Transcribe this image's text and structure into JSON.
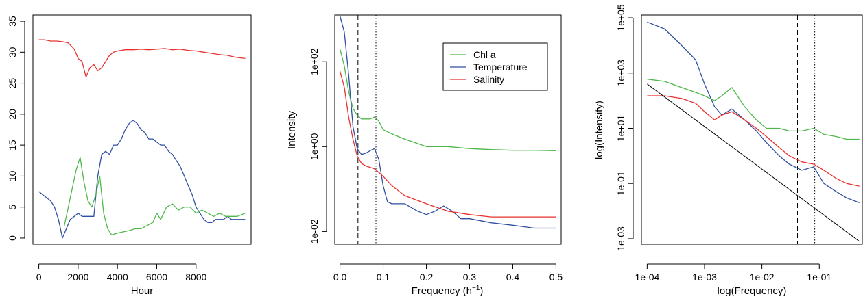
{
  "chart_data": [
    {
      "type": "line",
      "xlabel": "Hour",
      "ylabel": "",
      "xlim": [
        -300,
        10800
      ],
      "ylim": [
        -1,
        36
      ],
      "xticks": [
        0,
        2000,
        4000,
        6000,
        8000
      ],
      "xtick_labels": [
        "0",
        "2000",
        "4000",
        "6000",
        "8000"
      ],
      "yticks": [
        0,
        5,
        10,
        15,
        20,
        25,
        30,
        35
      ],
      "ytick_labels": [
        "0",
        "5",
        "10",
        "15",
        "20",
        "25",
        "30",
        "35"
      ],
      "series": [
        {
          "color": "#e8312e",
          "x": [
            0,
            300,
            600,
            900,
            1200,
            1500,
            1800,
            2000,
            2200,
            2400,
            2600,
            2800,
            3000,
            3200,
            3400,
            3600,
            3800,
            4000,
            4400,
            4800,
            5200,
            5600,
            6000,
            6400,
            6800,
            7200,
            7600,
            8000,
            8400,
            8800,
            9200,
            9600,
            10000,
            10500
          ],
          "y": [
            32,
            32,
            31.8,
            31.8,
            31.7,
            31.5,
            30.5,
            29,
            28.5,
            26,
            27.5,
            28,
            27,
            27.5,
            28.5,
            29.5,
            30,
            30.2,
            30.4,
            30.4,
            30.5,
            30.4,
            30.5,
            30.6,
            30.4,
            30.5,
            30.3,
            30.2,
            30,
            29.8,
            29.6,
            29.5,
            29.2,
            29
          ]
        },
        {
          "color": "#2f4fa3",
          "x": [
            0,
            200,
            400,
            600,
            800,
            1000,
            1200,
            1400,
            1600,
            1800,
            2000,
            2200,
            2500,
            2800,
            3000,
            3200,
            3400,
            3600,
            3800,
            4000,
            4200,
            4400,
            4600,
            4800,
            5000,
            5200,
            5400,
            5600,
            5800,
            6000,
            6200,
            6400,
            6600,
            6800,
            7000,
            7200,
            7400,
            7600,
            7800,
            8000,
            8200,
            8400,
            8600,
            8800,
            9000,
            9200,
            9400,
            9600,
            9800,
            10000,
            10500
          ],
          "y": [
            7.5,
            7,
            6.5,
            6,
            5,
            3,
            0,
            1.5,
            3,
            3.5,
            4,
            3.5,
            3.5,
            3.5,
            10,
            13.5,
            14,
            13.5,
            15,
            15,
            16,
            17.5,
            18.5,
            19,
            18.5,
            17.5,
            17,
            16,
            16,
            15.5,
            15,
            15,
            14,
            13.5,
            12.5,
            11.5,
            10,
            8.5,
            7,
            5,
            4,
            3,
            2.5,
            2.5,
            3,
            3,
            3,
            3.5,
            3,
            3,
            3
          ]
        },
        {
          "color": "#4db848",
          "x": [
            0,
            500,
            1000,
            1300,
            1500,
            1700,
            1900,
            2100,
            2300,
            2500,
            2700,
            2900,
            3100,
            3300,
            3500,
            3700,
            4000,
            4300,
            4600,
            4900,
            5200,
            5500,
            5800,
            6000,
            6200,
            6500,
            6800,
            7100,
            7400,
            7700,
            8000,
            8300,
            8600,
            8900,
            9200,
            9500,
            9800,
            10100,
            10500
          ],
          "y": [
            null,
            null,
            null,
            2,
            5,
            8,
            11,
            13,
            9,
            6,
            5,
            7,
            10,
            4,
            1.5,
            0.5,
            0.8,
            1,
            1.2,
            1.5,
            1.5,
            2,
            2.5,
            4,
            3,
            5,
            5.5,
            4.5,
            5,
            5,
            4,
            4.5,
            4,
            3.5,
            4,
            3.5,
            3.5,
            3.5,
            4
          ]
        }
      ]
    },
    {
      "type": "line",
      "xlabel": "Frequency (h",
      "xlabel_sup": "−1",
      "xlabel_close": ")",
      "ylabel": "Intensity",
      "log_y": true,
      "xlim": [
        -0.012,
        0.512
      ],
      "ylim_log10": [
        -2.3,
        3.1
      ],
      "xticks": [
        0.0,
        0.1,
        0.2,
        0.3,
        0.4,
        0.5
      ],
      "xtick_labels": [
        "0.0",
        "0.1",
        "0.2",
        "0.3",
        "0.4",
        "0.5"
      ],
      "yticks_log10": [
        -2,
        0,
        2
      ],
      "ytick_labels": [
        "1e-02",
        "1e+00",
        "1e+02"
      ],
      "vlines": [
        {
          "x": 0.0417,
          "style": "dashed"
        },
        {
          "x": 0.0833,
          "style": "dotted"
        }
      ],
      "legend": {
        "position": "top-right",
        "entries": [
          "Chl a",
          "Temperature",
          "Salinity"
        ]
      },
      "series": [
        {
          "name": "Chl a",
          "color": "#4db848",
          "x": [
            0.0,
            0.01,
            0.02,
            0.03,
            0.04,
            0.05,
            0.06,
            0.07,
            0.08,
            0.09,
            0.1,
            0.12,
            0.15,
            0.2,
            0.25,
            0.3,
            0.35,
            0.4,
            0.45,
            0.5
          ],
          "y": [
            200,
            80,
            20,
            8,
            5.5,
            4.5,
            4.5,
            4.5,
            5,
            4,
            2.5,
            2.0,
            1.5,
            1.0,
            1.0,
            0.9,
            0.85,
            0.82,
            0.82,
            0.8
          ]
        },
        {
          "name": "Temperature",
          "color": "#2f4fa3",
          "x": [
            0.0,
            0.01,
            0.02,
            0.03,
            0.04,
            0.05,
            0.06,
            0.07,
            0.08,
            0.09,
            0.1,
            0.11,
            0.12,
            0.15,
            0.18,
            0.2,
            0.22,
            0.24,
            0.26,
            0.28,
            0.3,
            0.35,
            0.4,
            0.45,
            0.5
          ],
          "y": [
            1200,
            500,
            50,
            3,
            0.9,
            0.65,
            0.7,
            0.8,
            0.9,
            0.5,
            0.12,
            0.05,
            0.045,
            0.045,
            0.03,
            0.025,
            0.03,
            0.04,
            0.03,
            0.02,
            0.02,
            0.016,
            0.014,
            0.012,
            0.012
          ]
        },
        {
          "name": "Salinity",
          "color": "#e8312e",
          "x": [
            0.0,
            0.01,
            0.02,
            0.03,
            0.04,
            0.05,
            0.06,
            0.08,
            0.1,
            0.12,
            0.15,
            0.2,
            0.25,
            0.3,
            0.35,
            0.4,
            0.45,
            0.5
          ],
          "y": [
            60,
            25,
            5,
            1.5,
            0.6,
            0.4,
            0.35,
            0.3,
            0.2,
            0.12,
            0.07,
            0.045,
            0.03,
            0.025,
            0.022,
            0.022,
            0.022,
            0.022
          ]
        }
      ]
    },
    {
      "type": "line",
      "xlabel": "log(Frequency)",
      "ylabel": "log(Intensity)",
      "log_x": true,
      "log_y": true,
      "xlim_log10": [
        -4.1,
        -0.25
      ],
      "ylim_log10": [
        -3.2,
        5.1
      ],
      "xticks_log10": [
        -4,
        -3,
        -2,
        -1
      ],
      "xtick_labels": [
        "1e-04",
        "1e-03",
        "1e-02",
        "1e-01"
      ],
      "yticks_log10": [
        -3,
        -1,
        1,
        3,
        5
      ],
      "ytick_labels": [
        "1e-03",
        "1e-01",
        "1e+01",
        "1e+03",
        "1e+05"
      ],
      "vlines": [
        {
          "x": 0.0417,
          "style": "dashed"
        },
        {
          "x": 0.0833,
          "style": "dotted"
        }
      ],
      "series": [
        {
          "color": "#2f4fa3",
          "x": [
            0.0001,
            0.0002,
            0.0004,
            0.0007,
            0.001,
            0.0015,
            0.002,
            0.003,
            0.005,
            0.008,
            0.012,
            0.02,
            0.03,
            0.05,
            0.08,
            0.12,
            0.2,
            0.3,
            0.5
          ],
          "y": [
            70000,
            40000,
            10000,
            3000,
            400,
            60,
            30,
            50,
            20,
            8,
            3,
            1,
            0.5,
            0.3,
            0.4,
            0.1,
            0.05,
            0.03,
            0.02
          ]
        },
        {
          "color": "#4db848",
          "x": [
            0.0001,
            0.0002,
            0.0004,
            0.0007,
            0.001,
            0.0015,
            0.002,
            0.003,
            0.005,
            0.008,
            0.012,
            0.02,
            0.03,
            0.05,
            0.08,
            0.12,
            0.2,
            0.3,
            0.5
          ],
          "y": [
            600,
            500,
            300,
            200,
            150,
            100,
            150,
            300,
            60,
            20,
            10,
            10,
            8,
            8,
            10,
            6,
            5,
            4,
            4
          ]
        },
        {
          "color": "#e8312e",
          "x": [
            0.0001,
            0.0002,
            0.0004,
            0.0007,
            0.001,
            0.0015,
            0.002,
            0.003,
            0.005,
            0.008,
            0.012,
            0.02,
            0.03,
            0.05,
            0.08,
            0.12,
            0.2,
            0.3,
            0.5
          ],
          "y": [
            150,
            150,
            120,
            80,
            40,
            20,
            30,
            40,
            20,
            10,
            5,
            2,
            1,
            0.6,
            0.5,
            0.3,
            0.15,
            0.1,
            0.08
          ]
        },
        {
          "color": "#000000",
          "x": [
            0.0001,
            0.5
          ],
          "y": [
            400,
            0.0008
          ]
        }
      ]
    }
  ]
}
